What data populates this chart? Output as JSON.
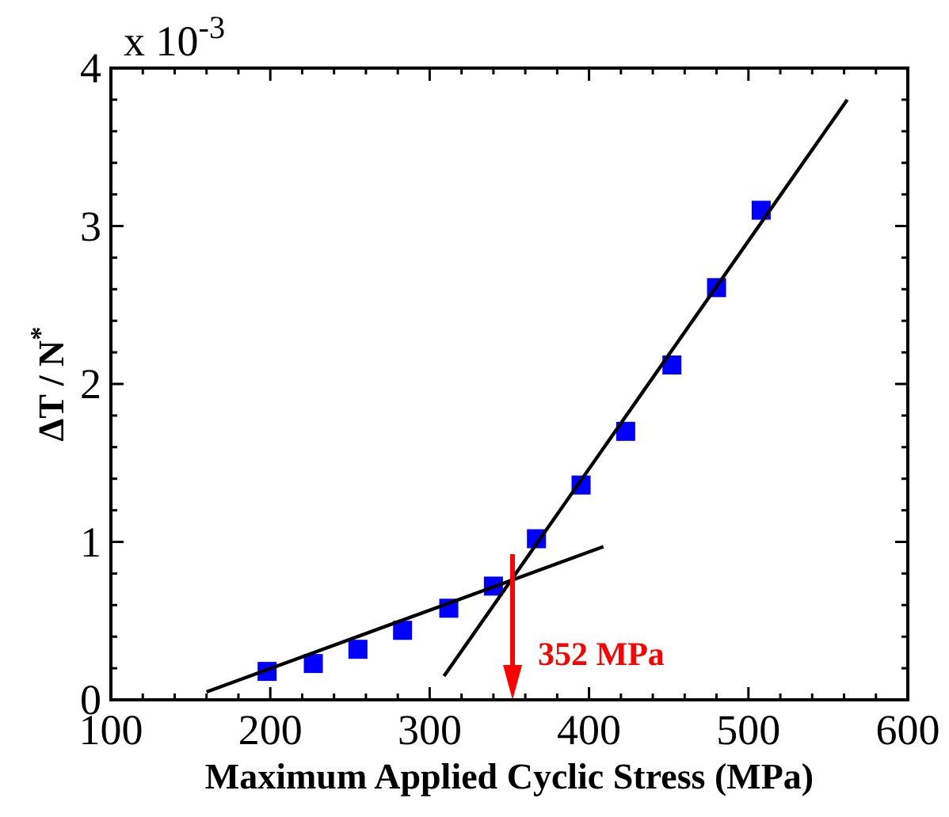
{
  "chart_data": {
    "type": "scatter",
    "xlabel": "Maximum Applied Cyclic Stress (MPa)",
    "ylabel": "ΔT / N$^{*}$",
    "xlim": [
      100,
      600
    ],
    "ylim": [
      0,
      4
    ],
    "xticks": [
      100,
      {
        "value": 120,
        "label": null
      },
      {
        "value": 140,
        "label": null
      },
      {
        "value": 160,
        "label": null
      },
      {
        "value": 180,
        "label": null
      },
      200,
      {
        "value": 220,
        "label": null
      },
      {
        "value": 240,
        "label": null
      },
      {
        "value": 260,
        "label": null
      },
      {
        "value": 280,
        "label": null
      },
      300,
      {
        "value": 320,
        "label": null
      },
      {
        "value": 340,
        "label": null
      },
      {
        "value": 360,
        "label": null
      },
      {
        "value": 380,
        "label": null
      },
      400,
      {
        "value": 420,
        "label": null
      },
      {
        "value": 440,
        "label": null
      },
      {
        "value": 460,
        "label": null
      },
      {
        "value": 480,
        "label": null
      },
      500,
      {
        "value": 520,
        "label": null
      },
      {
        "value": 540,
        "label": null
      },
      {
        "value": 560,
        "label": null
      },
      {
        "value": 580,
        "label": null
      },
      600
    ],
    "yticks": [
      0,
      {
        "value": 0.2,
        "label": null
      },
      {
        "value": 0.4,
        "label": null
      },
      {
        "value": 0.6,
        "label": null
      },
      {
        "value": 0.8,
        "label": null
      },
      1,
      {
        "value": 1.2,
        "label": null
      },
      {
        "value": 1.4,
        "label": null
      },
      {
        "value": 1.6,
        "label": null
      },
      {
        "value": 1.8,
        "label": null
      },
      2,
      {
        "value": 2.2,
        "label": null
      },
      {
        "value": 2.4,
        "label": null
      },
      {
        "value": 2.6,
        "label": null
      },
      {
        "value": 2.8,
        "label": null
      },
      3,
      {
        "value": 3.2,
        "label": null
      },
      {
        "value": 3.4,
        "label": null
      },
      {
        "value": 3.6,
        "label": null
      },
      {
        "value": 3.8,
        "label": null
      },
      4
    ],
    "grid": false,
    "series": [
      {
        "color": "#0000ff",
        "marker": "square",
        "x": [
          198,
          227,
          255,
          283,
          312,
          340,
          367,
          395,
          423,
          452,
          480,
          508
        ],
        "values": [
          0.18,
          0.23,
          0.32,
          0.44,
          0.58,
          0.72,
          1.02,
          1.36,
          1.7,
          2.12,
          2.61,
          3.1
        ]
      },
      {
        "type": "line",
        "color": "#000000",
        "line_style": "solid",
        "x": [
          160,
          409
        ],
        "values": [
          0.05,
          0.97
        ]
      },
      {
        "type": "line",
        "color": "#000000",
        "line_style": "solid",
        "x": [
          309,
          562
        ],
        "values": [
          0.15,
          3.8
        ]
      }
    ],
    "ref_lines": [
      {
        "axis": "x",
        "value": 352,
        "label": "352 MPa",
        "color": "#ff0000"
      }
    ],
    "annotations": [
      "x 10$^{-3}$"
    ]
  }
}
